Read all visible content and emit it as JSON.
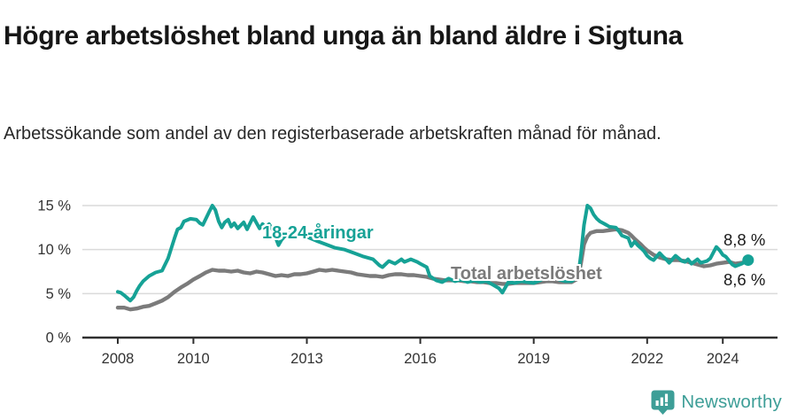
{
  "header": {
    "title": "Högre arbetslöshet bland unga än bland äldre i Sigtuna",
    "subtitle": "Arbetssökande som andel av den registerbaserade arbetskraften månad för månad."
  },
  "footer": {
    "brand": "Newsworthy"
  },
  "colors": {
    "accent_teal": "#16a296",
    "series_gray": "#7b7b7b",
    "brand_teal": "#3d9e97",
    "gridline": "#dadada",
    "axis": "#2f2f2f",
    "text_dark": "#1a1a1a"
  },
  "chart_data": {
    "type": "line",
    "title": "Högre arbetslöshet bland unga än bland äldre i Sigtuna",
    "subtitle": "Arbetssökande som andel av den registerbaserade arbetskraften månad för månad.",
    "xlabel": "",
    "ylabel": "",
    "y_tick_suffix": " %",
    "x_ticks": [
      2008,
      2010,
      2013,
      2016,
      2019,
      2022,
      2024
    ],
    "y_ticks": [
      0,
      5,
      10,
      15
    ],
    "xlim": [
      2007.05,
      2025.45
    ],
    "ylim": [
      0,
      15.5
    ],
    "grid": true,
    "legend_position": "inline-labels",
    "series": [
      {
        "name": "18-24-åringar",
        "color": "#16a296",
        "final_label": "8,8 %",
        "final_value": 8.8,
        "marker_end": true,
        "points": [
          [
            2008.0,
            5.2
          ],
          [
            2008.08,
            5.1
          ],
          [
            2008.17,
            4.8
          ],
          [
            2008.33,
            4.2
          ],
          [
            2008.42,
            4.6
          ],
          [
            2008.5,
            5.3
          ],
          [
            2008.58,
            5.9
          ],
          [
            2008.67,
            6.4
          ],
          [
            2008.83,
            7.0
          ],
          [
            2009.0,
            7.4
          ],
          [
            2009.17,
            7.6
          ],
          [
            2009.33,
            9.0
          ],
          [
            2009.42,
            10.2
          ],
          [
            2009.5,
            11.3
          ],
          [
            2009.58,
            12.3
          ],
          [
            2009.67,
            12.5
          ],
          [
            2009.75,
            13.2
          ],
          [
            2009.92,
            13.5
          ],
          [
            2010.08,
            13.4
          ],
          [
            2010.17,
            13.0
          ],
          [
            2010.25,
            12.8
          ],
          [
            2010.42,
            14.3
          ],
          [
            2010.5,
            15.0
          ],
          [
            2010.58,
            14.5
          ],
          [
            2010.67,
            13.2
          ],
          [
            2010.75,
            12.5
          ],
          [
            2010.83,
            13.1
          ],
          [
            2010.92,
            13.4
          ],
          [
            2011.0,
            12.6
          ],
          [
            2011.08,
            13.0
          ],
          [
            2011.17,
            12.4
          ],
          [
            2011.33,
            13.1
          ],
          [
            2011.42,
            12.3
          ],
          [
            2011.58,
            13.7
          ],
          [
            2011.75,
            12.4
          ],
          [
            2011.83,
            12.9
          ],
          [
            2011.92,
            12.5
          ],
          [
            2012.0,
            12.9
          ],
          [
            2012.08,
            12.4
          ],
          [
            2012.17,
            11.4
          ],
          [
            2012.25,
            10.5
          ],
          [
            2012.33,
            11.1
          ],
          [
            2012.5,
            11.9
          ],
          [
            2012.58,
            12.4
          ],
          [
            2012.75,
            12.0
          ],
          [
            2012.92,
            11.6
          ],
          [
            2013.08,
            11.3
          ],
          [
            2013.25,
            11.0
          ],
          [
            2013.5,
            10.6
          ],
          [
            2013.75,
            10.2
          ],
          [
            2014.0,
            10.0
          ],
          [
            2014.25,
            9.6
          ],
          [
            2014.5,
            9.2
          ],
          [
            2014.75,
            8.9
          ],
          [
            2014.92,
            8.2
          ],
          [
            2015.0,
            8.0
          ],
          [
            2015.17,
            8.7
          ],
          [
            2015.33,
            8.4
          ],
          [
            2015.5,
            8.9
          ],
          [
            2015.58,
            8.6
          ],
          [
            2015.75,
            8.9
          ],
          [
            2015.92,
            8.6
          ],
          [
            2016.0,
            8.4
          ],
          [
            2016.17,
            8.0
          ],
          [
            2016.25,
            7.0
          ],
          [
            2016.42,
            6.5
          ],
          [
            2016.58,
            6.3
          ],
          [
            2016.75,
            6.7
          ],
          [
            2016.92,
            6.4
          ],
          [
            2017.08,
            6.6
          ],
          [
            2017.25,
            6.3
          ],
          [
            2017.42,
            6.5
          ],
          [
            2017.58,
            6.3
          ],
          [
            2017.75,
            6.4
          ],
          [
            2017.92,
            6.0
          ],
          [
            2018.08,
            5.6
          ],
          [
            2018.17,
            5.1
          ],
          [
            2018.33,
            6.3
          ],
          [
            2018.5,
            6.2
          ],
          [
            2018.67,
            6.4
          ],
          [
            2018.83,
            6.3
          ],
          [
            2019.0,
            6.2
          ],
          [
            2019.17,
            6.5
          ],
          [
            2019.33,
            6.9
          ],
          [
            2019.5,
            7.0
          ],
          [
            2019.67,
            6.6
          ],
          [
            2019.83,
            6.4
          ],
          [
            2020.0,
            6.4
          ],
          [
            2020.17,
            6.9
          ],
          [
            2020.25,
            9.5
          ],
          [
            2020.33,
            12.8
          ],
          [
            2020.42,
            15.0
          ],
          [
            2020.5,
            14.7
          ],
          [
            2020.58,
            14.0
          ],
          [
            2020.67,
            13.5
          ],
          [
            2020.75,
            13.2
          ],
          [
            2020.92,
            12.8
          ],
          [
            2021.0,
            12.6
          ],
          [
            2021.17,
            12.5
          ],
          [
            2021.25,
            12.1
          ],
          [
            2021.33,
            11.6
          ],
          [
            2021.5,
            11.3
          ],
          [
            2021.58,
            10.4
          ],
          [
            2021.67,
            10.9
          ],
          [
            2021.75,
            10.5
          ],
          [
            2021.83,
            10.2
          ],
          [
            2021.92,
            9.8
          ],
          [
            2022.0,
            9.3
          ],
          [
            2022.08,
            9.0
          ],
          [
            2022.17,
            8.8
          ],
          [
            2022.33,
            9.6
          ],
          [
            2022.42,
            9.2
          ],
          [
            2022.5,
            8.9
          ],
          [
            2022.58,
            8.5
          ],
          [
            2022.75,
            9.3
          ],
          [
            2022.92,
            8.7
          ],
          [
            2023.0,
            8.6
          ],
          [
            2023.08,
            8.9
          ],
          [
            2023.17,
            8.4
          ],
          [
            2023.33,
            8.9
          ],
          [
            2023.42,
            8.5
          ],
          [
            2023.58,
            8.7
          ],
          [
            2023.67,
            9.0
          ],
          [
            2023.83,
            10.3
          ],
          [
            2023.92,
            9.9
          ],
          [
            2024.0,
            9.4
          ],
          [
            2024.08,
            9.2
          ],
          [
            2024.25,
            8.3
          ],
          [
            2024.33,
            8.1
          ],
          [
            2024.5,
            8.4
          ],
          [
            2024.67,
            8.8
          ]
        ]
      },
      {
        "name": "Total arbetslöshet",
        "color": "#7b7b7b",
        "final_label": "8,6 %",
        "final_value": 8.6,
        "marker_end": false,
        "points": [
          [
            2008.0,
            3.4
          ],
          [
            2008.17,
            3.4
          ],
          [
            2008.33,
            3.2
          ],
          [
            2008.5,
            3.3
          ],
          [
            2008.67,
            3.5
          ],
          [
            2008.83,
            3.6
          ],
          [
            2009.0,
            3.9
          ],
          [
            2009.17,
            4.2
          ],
          [
            2009.33,
            4.6
          ],
          [
            2009.5,
            5.2
          ],
          [
            2009.67,
            5.7
          ],
          [
            2009.83,
            6.1
          ],
          [
            2010.0,
            6.6
          ],
          [
            2010.17,
            7.0
          ],
          [
            2010.33,
            7.4
          ],
          [
            2010.5,
            7.7
          ],
          [
            2010.67,
            7.6
          ],
          [
            2010.83,
            7.6
          ],
          [
            2011.0,
            7.5
          ],
          [
            2011.17,
            7.6
          ],
          [
            2011.33,
            7.4
          ],
          [
            2011.5,
            7.3
          ],
          [
            2011.67,
            7.5
          ],
          [
            2011.83,
            7.4
          ],
          [
            2012.0,
            7.2
          ],
          [
            2012.17,
            7.0
          ],
          [
            2012.33,
            7.1
          ],
          [
            2012.5,
            7.0
          ],
          [
            2012.67,
            7.2
          ],
          [
            2012.83,
            7.2
          ],
          [
            2013.0,
            7.3
          ],
          [
            2013.17,
            7.5
          ],
          [
            2013.33,
            7.7
          ],
          [
            2013.5,
            7.6
          ],
          [
            2013.67,
            7.7
          ],
          [
            2013.83,
            7.6
          ],
          [
            2014.0,
            7.5
          ],
          [
            2014.17,
            7.4
          ],
          [
            2014.33,
            7.2
          ],
          [
            2014.5,
            7.1
          ],
          [
            2014.67,
            7.0
          ],
          [
            2014.83,
            7.0
          ],
          [
            2015.0,
            6.9
          ],
          [
            2015.17,
            7.1
          ],
          [
            2015.33,
            7.2
          ],
          [
            2015.5,
            7.2
          ],
          [
            2015.67,
            7.1
          ],
          [
            2015.83,
            7.1
          ],
          [
            2016.0,
            7.0
          ],
          [
            2016.17,
            6.9
          ],
          [
            2016.33,
            6.7
          ],
          [
            2016.5,
            6.6
          ],
          [
            2016.67,
            6.5
          ],
          [
            2016.83,
            6.5
          ],
          [
            2017.0,
            6.5
          ],
          [
            2017.17,
            6.4
          ],
          [
            2017.33,
            6.4
          ],
          [
            2017.5,
            6.3
          ],
          [
            2017.67,
            6.3
          ],
          [
            2017.83,
            6.2
          ],
          [
            2018.0,
            6.2
          ],
          [
            2018.17,
            6.1
          ],
          [
            2018.33,
            6.1
          ],
          [
            2018.5,
            6.2
          ],
          [
            2018.67,
            6.2
          ],
          [
            2018.83,
            6.2
          ],
          [
            2019.0,
            6.2
          ],
          [
            2019.17,
            6.3
          ],
          [
            2019.33,
            6.4
          ],
          [
            2019.5,
            6.4
          ],
          [
            2019.67,
            6.3
          ],
          [
            2019.83,
            6.3
          ],
          [
            2020.0,
            6.3
          ],
          [
            2020.17,
            6.7
          ],
          [
            2020.25,
            8.5
          ],
          [
            2020.33,
            10.6
          ],
          [
            2020.42,
            11.5
          ],
          [
            2020.5,
            11.9
          ],
          [
            2020.58,
            12.0
          ],
          [
            2020.67,
            12.1
          ],
          [
            2020.83,
            12.1
          ],
          [
            2021.0,
            12.2
          ],
          [
            2021.17,
            12.3
          ],
          [
            2021.33,
            12.2
          ],
          [
            2021.5,
            11.9
          ],
          [
            2021.58,
            11.6
          ],
          [
            2021.67,
            11.2
          ],
          [
            2021.83,
            10.6
          ],
          [
            2021.92,
            10.2
          ],
          [
            2022.0,
            9.9
          ],
          [
            2022.17,
            9.4
          ],
          [
            2022.33,
            9.1
          ],
          [
            2022.5,
            8.9
          ],
          [
            2022.67,
            8.8
          ],
          [
            2022.83,
            8.8
          ],
          [
            2023.0,
            8.7
          ],
          [
            2023.17,
            8.5
          ],
          [
            2023.33,
            8.3
          ],
          [
            2023.5,
            8.1
          ],
          [
            2023.67,
            8.2
          ],
          [
            2023.83,
            8.4
          ],
          [
            2024.0,
            8.5
          ],
          [
            2024.17,
            8.6
          ],
          [
            2024.33,
            8.4
          ],
          [
            2024.5,
            8.5
          ],
          [
            2024.67,
            8.6
          ]
        ]
      }
    ]
  }
}
